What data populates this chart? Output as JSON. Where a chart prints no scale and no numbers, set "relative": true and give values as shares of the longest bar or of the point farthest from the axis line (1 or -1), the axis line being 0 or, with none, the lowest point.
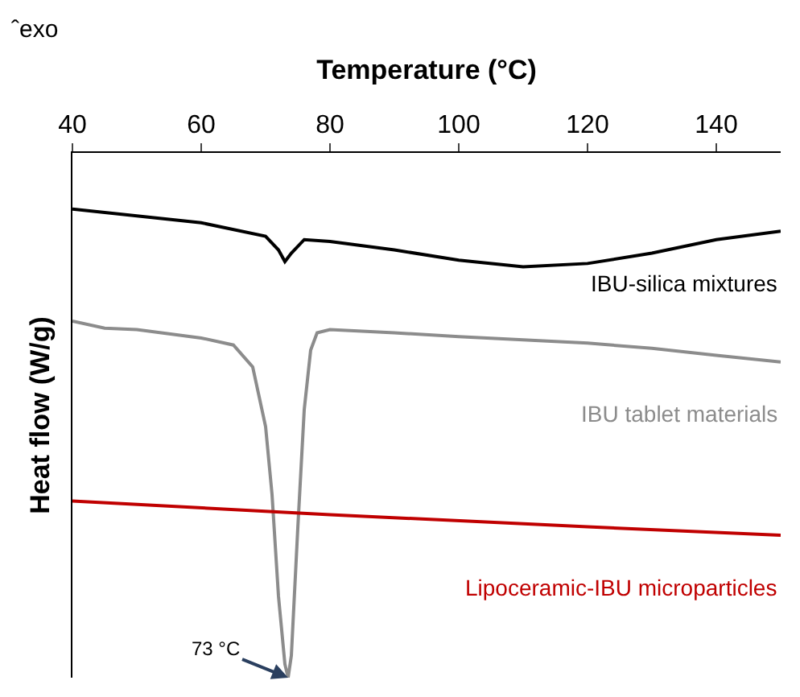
{
  "chart_data": {
    "type": "line",
    "xlabel": "Temperature (°C)",
    "ylabel": "Heat flow (W/g)",
    "relative": true,
    "xlim": [
      40,
      150
    ],
    "xticks": [
      40,
      60,
      80,
      100,
      120,
      140
    ],
    "legend": false,
    "marker": "none",
    "line_style": "solid",
    "annotations": [
      "ˆexo",
      {
        "text": "73 °C",
        "x": 73.5,
        "y": 0
      }
    ],
    "series": [
      {
        "name": "IBU-silica mixtures",
        "color": "#000000",
        "x": [
          40,
          60,
          70,
          72,
          73,
          74,
          76,
          80,
          90,
          100,
          110,
          120,
          130,
          140,
          150
        ],
        "values": [
          1.0,
          0.971,
          0.942,
          0.913,
          0.888,
          0.906,
          0.935,
          0.931,
          0.913,
          0.891,
          0.877,
          0.884,
          0.906,
          0.935,
          0.953
        ]
      },
      {
        "name": "IBU tablet materials",
        "color": "#8c8c8c",
        "x": [
          40,
          45,
          50,
          60,
          65,
          68,
          70,
          71,
          72,
          73,
          73.5,
          74,
          75,
          76,
          77,
          78,
          80,
          90,
          100,
          110,
          120,
          130,
          140,
          150
        ],
        "values": [
          0.761,
          0.746,
          0.743,
          0.725,
          0.71,
          0.663,
          0.536,
          0.391,
          0.174,
          0.029,
          0,
          0.047,
          0.319,
          0.572,
          0.699,
          0.736,
          0.743,
          0.736,
          0.728,
          0.721,
          0.714,
          0.703,
          0.688,
          0.674
        ]
      },
      {
        "name": "Lipoceramic-IBU microparticles",
        "color": "#c00000",
        "x": [
          40,
          80,
          120,
          150
        ],
        "values": [
          0.377,
          0.348,
          0.322,
          0.304
        ]
      }
    ]
  }
}
